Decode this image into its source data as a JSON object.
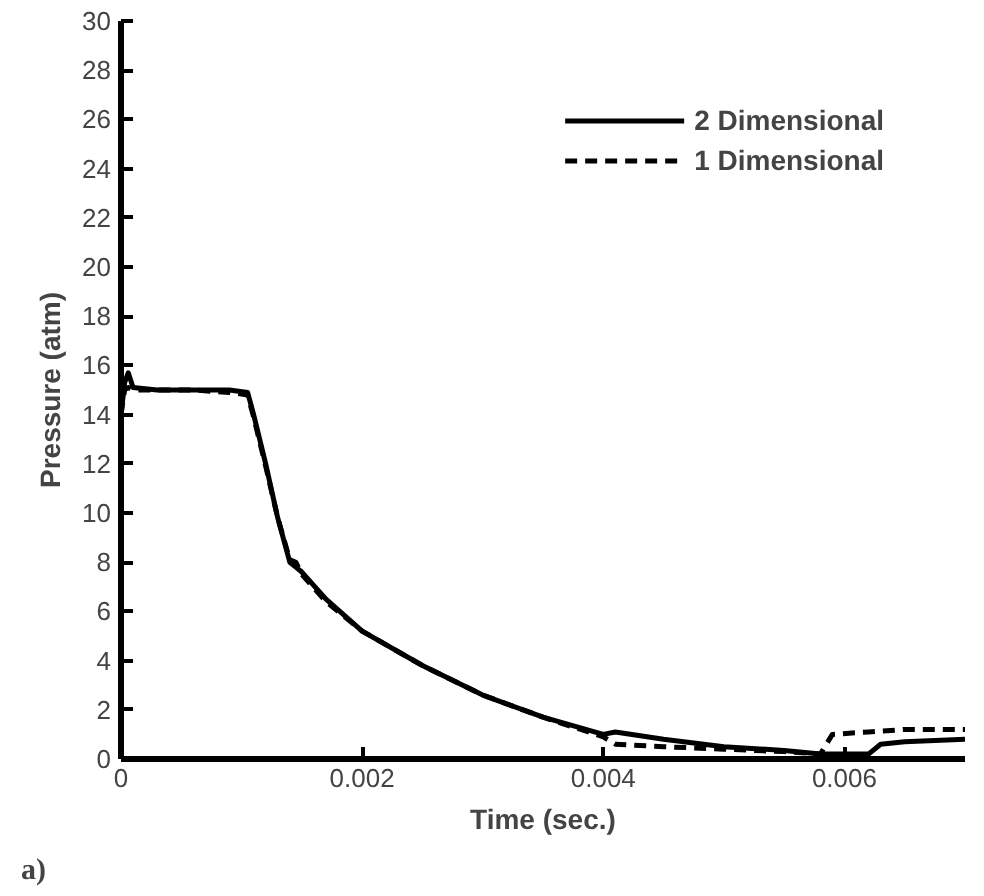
{
  "chart_data": {
    "type": "line",
    "xlabel": "Time (sec.)",
    "ylabel": "Pressure (atm)",
    "annotations": [
      "a)"
    ],
    "xlim": [
      0,
      0.007
    ],
    "ylim": [
      0,
      30
    ],
    "xticks": [
      0,
      0.002,
      0.004,
      0.006
    ],
    "yticks": [
      0,
      2,
      4,
      6,
      8,
      10,
      12,
      14,
      16,
      18,
      20,
      22,
      24,
      26,
      28,
      30
    ],
    "grid": false,
    "legend": "top right",
    "series": [
      {
        "name": "2 Dimensional",
        "color": "#000000",
        "line_style": "solid",
        "x": [
          0,
          3e-05,
          6e-05,
          0.0001,
          0.0003,
          0.0006,
          0.0009,
          0.00105,
          0.0011,
          0.0012,
          0.0013,
          0.0014,
          0.00145,
          0.0015,
          0.0017,
          0.002,
          0.0025,
          0.003,
          0.0035,
          0.004,
          0.0041,
          0.0045,
          0.005,
          0.0055,
          0.0058,
          0.0062,
          0.0063,
          0.0065,
          0.007
        ],
        "values": [
          14.0,
          15.3,
          15.7,
          15.1,
          15.0,
          15.0,
          15.0,
          14.9,
          14.0,
          12.0,
          9.8,
          8.0,
          7.8,
          7.6,
          6.5,
          5.2,
          3.8,
          2.6,
          1.7,
          1.0,
          1.1,
          0.8,
          0.5,
          0.35,
          0.2,
          0.2,
          0.6,
          0.7,
          0.8
        ]
      },
      {
        "name": "1 Dimensional",
        "color": "#000000",
        "line_style": "dashed",
        "x": [
          0,
          3e-05,
          6e-05,
          0.0001,
          0.0003,
          0.0006,
          0.0009,
          0.00105,
          0.0011,
          0.0012,
          0.0013,
          0.0014,
          0.00145,
          0.0015,
          0.0017,
          0.002,
          0.0025,
          0.003,
          0.0035,
          0.004,
          0.0041,
          0.0045,
          0.005,
          0.0055,
          0.0058,
          0.0059,
          0.0062,
          0.0065,
          0.007
        ],
        "values": [
          14.0,
          15.0,
          15.1,
          15.0,
          15.0,
          15.0,
          14.9,
          14.8,
          13.9,
          11.9,
          9.8,
          8.1,
          8.0,
          7.5,
          6.4,
          5.2,
          3.8,
          2.6,
          1.7,
          0.9,
          0.6,
          0.5,
          0.4,
          0.3,
          0.2,
          1.0,
          1.1,
          1.2,
          1.2
        ]
      }
    ]
  }
}
